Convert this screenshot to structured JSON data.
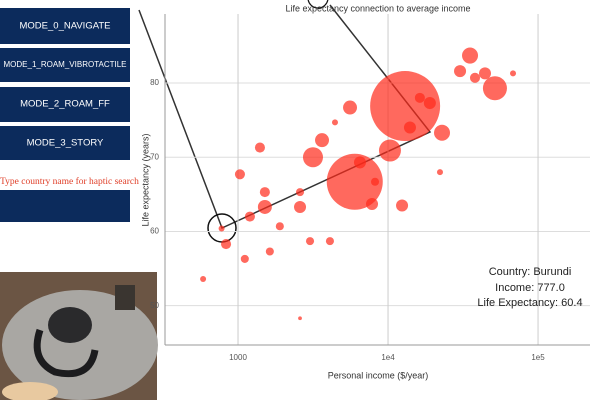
{
  "buttons": [
    "MODE_0_NAVIGATE",
    "MODE_1_ROAM_VIBROTACTILE",
    "MODE_2_ROAM_FF",
    "MODE_3_STORY"
  ],
  "search_placeholder": "Type country name for haptic search",
  "chart_data": {
    "type": "scatter",
    "title": "Life expectancy connection to average income",
    "x_label": "Personal income ($/year)",
    "y_label": "Life expectancy (years)",
    "xlog": true,
    "xlim": [
      326,
      222000
    ],
    "ylim": [
      44.7,
      89.3
    ],
    "xticks": [
      1000,
      {
        "value": 10000,
        "label": "1e4"
      },
      {
        "value": 100000,
        "label": "1e5"
      }
    ],
    "yticks": [
      50,
      60,
      70,
      80
    ],
    "grid": true,
    "series": [
      {
        "color": "#ff2a1a",
        "x": [
          13000,
          6000,
          51600,
          35200,
          30200,
          44300,
          22900,
          19000,
          5580,
          10300,
          3160,
          3630,
          1400,
          1030,
          1510,
          2590,
          1510,
          1200,
          777,
          832,
          1110,
          1630,
          7820,
          12400,
          1900,
          3020,
          4100,
          2590,
          22200,
          16300,
          14000,
          38000,
          68100,
          585,
          2590,
          8190,
          6500,
          4430
        ],
        "y": [
          76.9,
          66.7,
          79.3,
          83.7,
          81.6,
          81.3,
          73.3,
          77.3,
          76.7,
          70.9,
          70.0,
          72.3,
          71.3,
          67.7,
          63.3,
          63.3,
          65.3,
          62.0,
          60.4,
          58.3,
          56.3,
          57.3,
          63.7,
          63.5,
          60.7,
          58.7,
          58.7,
          65.3,
          68.0,
          78.0,
          74.0,
          80.7,
          81.3,
          53.6,
          48.3,
          66.7,
          69.3,
          74.7
        ],
        "size": [
          1357,
          869,
          160,
          71,
          40,
          40,
          71,
          40,
          54,
          134,
          111,
          54,
          28,
          28,
          54,
          40,
          28,
          28,
          10,
          28,
          18,
          18,
          40,
          40,
          18,
          18,
          18,
          18,
          10,
          28,
          40,
          28,
          10,
          10,
          4,
          18,
          40,
          10
        ]
      }
    ]
  },
  "info": {
    "country": "Country: Burundi",
    "income": "Income: 777.0",
    "life": "Life Expectancy: 60.4"
  }
}
